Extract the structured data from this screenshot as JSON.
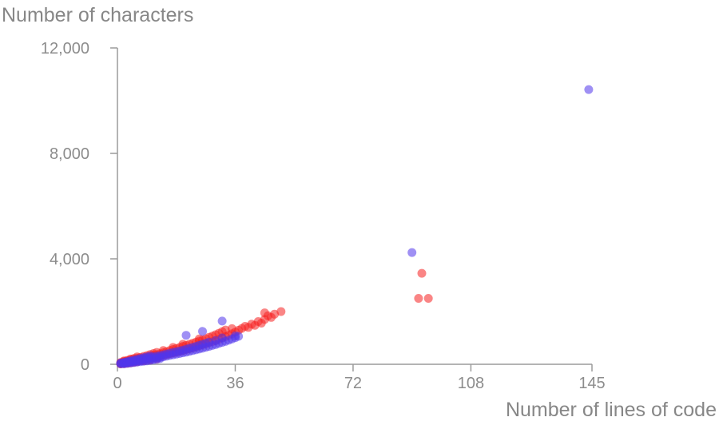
{
  "chart_data": {
    "type": "scatter",
    "title": "Number of characters",
    "xlabel": "Number of lines of code",
    "ylabel": "Number of characters",
    "xlim": [
      0,
      145
    ],
    "ylim": [
      0,
      12000
    ],
    "xticks": [
      0,
      36,
      72,
      108,
      145
    ],
    "xtick_labels": [
      "0",
      "36",
      "72",
      "108",
      "145"
    ],
    "yticks": [
      0,
      4000,
      8000,
      12000
    ],
    "ytick_labels": [
      "0",
      "4,000",
      "8,000",
      "12,000"
    ],
    "grid": false,
    "legend": false,
    "marker_radius": 5.5,
    "axis_color": "#9b9b9b",
    "label_color": "#878787",
    "tick_label_color": "#8c8c8c",
    "series": [
      {
        "name": "red-series",
        "color": "#f52121",
        "opacity": 0.55,
        "points": [
          [
            1,
            25
          ],
          [
            1,
            45
          ],
          [
            1,
            70
          ],
          [
            1,
            15
          ],
          [
            2,
            40
          ],
          [
            2,
            60
          ],
          [
            2,
            85
          ],
          [
            2,
            110
          ],
          [
            2,
            25
          ],
          [
            2,
            130
          ],
          [
            3,
            70
          ],
          [
            3,
            95
          ],
          [
            3,
            125
          ],
          [
            3,
            150
          ],
          [
            3,
            40
          ],
          [
            4,
            95
          ],
          [
            4,
            130
          ],
          [
            4,
            165
          ],
          [
            4,
            55
          ],
          [
            4,
            200
          ],
          [
            5,
            115
          ],
          [
            5,
            150
          ],
          [
            5,
            190
          ],
          [
            5,
            220
          ],
          [
            5,
            75
          ],
          [
            6,
            140
          ],
          [
            6,
            180
          ],
          [
            6,
            230
          ],
          [
            6,
            95
          ],
          [
            6,
            280
          ],
          [
            7,
            160
          ],
          [
            7,
            210
          ],
          [
            7,
            260
          ],
          [
            8,
            185
          ],
          [
            8,
            240
          ],
          [
            8,
            300
          ],
          [
            8,
            140
          ],
          [
            9,
            210
          ],
          [
            9,
            270
          ],
          [
            9,
            330
          ],
          [
            10,
            230
          ],
          [
            10,
            300
          ],
          [
            10,
            370
          ],
          [
            10,
            170
          ],
          [
            11,
            255
          ],
          [
            11,
            330
          ],
          [
            11,
            410
          ],
          [
            12,
            280
          ],
          [
            12,
            360
          ],
          [
            12,
            450
          ],
          [
            12,
            210
          ],
          [
            13,
            310
          ],
          [
            13,
            400
          ],
          [
            14,
            340
          ],
          [
            14,
            440
          ],
          [
            14,
            520
          ],
          [
            15,
            370
          ],
          [
            15,
            480
          ],
          [
            16,
            400
          ],
          [
            16,
            520
          ],
          [
            17,
            430
          ],
          [
            17,
            560
          ],
          [
            17,
            640
          ],
          [
            18,
            460
          ],
          [
            18,
            600
          ],
          [
            19,
            490
          ],
          [
            19,
            640
          ],
          [
            20,
            520
          ],
          [
            20,
            680
          ],
          [
            20,
            760
          ],
          [
            21,
            560
          ],
          [
            21,
            720
          ],
          [
            22,
            590
          ],
          [
            22,
            760
          ],
          [
            23,
            620
          ],
          [
            23,
            800
          ],
          [
            24,
            660
          ],
          [
            24,
            840
          ],
          [
            25,
            700
          ],
          [
            25,
            880
          ],
          [
            25,
            960
          ],
          [
            26,
            740
          ],
          [
            26,
            920
          ],
          [
            27,
            780
          ],
          [
            27,
            970
          ],
          [
            28,
            820
          ],
          [
            28,
            1020
          ],
          [
            29,
            860
          ],
          [
            29,
            1070
          ],
          [
            30,
            900
          ],
          [
            30,
            1120
          ],
          [
            31,
            950
          ],
          [
            31,
            1180
          ],
          [
            32,
            1000
          ],
          [
            32,
            1240
          ],
          [
            33,
            1050
          ],
          [
            33,
            1300
          ],
          [
            34,
            1100
          ],
          [
            35,
            1160
          ],
          [
            35,
            1350
          ],
          [
            36,
            1220
          ],
          [
            37,
            1290
          ],
          [
            38,
            1360
          ],
          [
            39,
            1440
          ],
          [
            40,
            1400
          ],
          [
            41,
            1520
          ],
          [
            42,
            1480
          ],
          [
            43,
            1620
          ],
          [
            44,
            1560
          ],
          [
            45,
            1700
          ],
          [
            45,
            1950
          ],
          [
            46,
            1840
          ],
          [
            47,
            1780
          ],
          [
            48,
            1900
          ],
          [
            50,
            2000
          ],
          [
            92,
            2500
          ],
          [
            93,
            3450
          ],
          [
            95,
            2500
          ]
        ]
      },
      {
        "name": "blue-series",
        "color": "#5134eb",
        "opacity": 0.55,
        "points": [
          [
            1,
            18
          ],
          [
            1,
            32
          ],
          [
            1,
            50
          ],
          [
            2,
            36
          ],
          [
            2,
            55
          ],
          [
            2,
            75
          ],
          [
            2,
            20
          ],
          [
            3,
            55
          ],
          [
            3,
            80
          ],
          [
            3,
            105
          ],
          [
            3,
            35
          ],
          [
            4,
            75
          ],
          [
            4,
            105
          ],
          [
            4,
            135
          ],
          [
            4,
            50
          ],
          [
            5,
            95
          ],
          [
            5,
            130
          ],
          [
            5,
            165
          ],
          [
            5,
            65
          ],
          [
            6,
            115
          ],
          [
            6,
            155
          ],
          [
            6,
            195
          ],
          [
            6,
            85
          ],
          [
            7,
            135
          ],
          [
            7,
            180
          ],
          [
            7,
            225
          ],
          [
            7,
            100
          ],
          [
            8,
            155
          ],
          [
            8,
            205
          ],
          [
            8,
            255
          ],
          [
            8,
            115
          ],
          [
            9,
            175
          ],
          [
            9,
            230
          ],
          [
            9,
            285
          ],
          [
            9,
            130
          ],
          [
            10,
            195
          ],
          [
            10,
            255
          ],
          [
            10,
            315
          ],
          [
            10,
            150
          ],
          [
            11,
            215
          ],
          [
            11,
            280
          ],
          [
            11,
            170
          ],
          [
            12,
            235
          ],
          [
            12,
            305
          ],
          [
            12,
            190
          ],
          [
            13,
            260
          ],
          [
            13,
            330
          ],
          [
            13,
            215
          ],
          [
            14,
            285
          ],
          [
            14,
            360
          ],
          [
            15,
            310
          ],
          [
            15,
            390
          ],
          [
            16,
            335
          ],
          [
            16,
            420
          ],
          [
            17,
            360
          ],
          [
            17,
            450
          ],
          [
            18,
            385
          ],
          [
            18,
            480
          ],
          [
            19,
            410
          ],
          [
            19,
            510
          ],
          [
            20,
            435
          ],
          [
            20,
            540
          ],
          [
            21,
            460
          ],
          [
            21,
            575
          ],
          [
            21,
            1100
          ],
          [
            22,
            490
          ],
          [
            22,
            610
          ],
          [
            23,
            520
          ],
          [
            23,
            645
          ],
          [
            24,
            550
          ],
          [
            24,
            680
          ],
          [
            25,
            580
          ],
          [
            25,
            720
          ],
          [
            26,
            610
          ],
          [
            26,
            760
          ],
          [
            26,
            1250
          ],
          [
            27,
            645
          ],
          [
            27,
            800
          ],
          [
            28,
            680
          ],
          [
            28,
            840
          ],
          [
            29,
            715
          ],
          [
            30,
            750
          ],
          [
            30,
            900
          ],
          [
            31,
            790
          ],
          [
            32,
            830
          ],
          [
            32,
            1000
          ],
          [
            32,
            1640
          ],
          [
            33,
            870
          ],
          [
            34,
            915
          ],
          [
            35,
            960
          ],
          [
            36,
            1010
          ],
          [
            36,
            1080
          ],
          [
            37,
            1060
          ],
          [
            90,
            4240
          ],
          [
            144,
            10420
          ]
        ]
      }
    ]
  }
}
